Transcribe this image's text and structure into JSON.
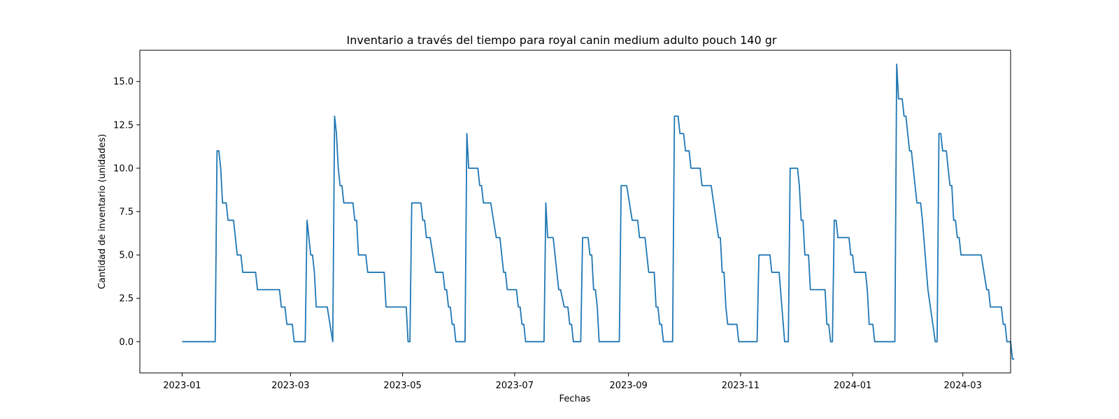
{
  "chart_data": {
    "type": "line",
    "title": "Inventario a través del tiempo para royal canin medium adulto pouch 140 gr",
    "xlabel": "Fechas",
    "ylabel": "Cantidad de inventario (unidades)",
    "x_type": "date",
    "xlim": [
      "2022-12-09",
      "2024-03-27"
    ],
    "ylim": [
      -1.8,
      16.8
    ],
    "x_ticks": [
      "2023-01",
      "2023-03",
      "2023-05",
      "2023-07",
      "2023-09",
      "2023-11",
      "2024-01",
      "2024-03"
    ],
    "y_ticks": [
      0.0,
      2.5,
      5.0,
      7.5,
      10.0,
      12.5,
      15.0
    ],
    "y_tick_labels": [
      "0.0",
      "2.5",
      "5.0",
      "7.5",
      "10.0",
      "12.5",
      "15.0"
    ],
    "grid": false,
    "line_color": "#1f77b4",
    "series": [
      {
        "name": "",
        "points": [
          [
            "2023-01-01",
            0
          ],
          [
            "2023-01-19",
            0
          ],
          [
            "2023-01-20",
            11
          ],
          [
            "2023-01-21",
            11
          ],
          [
            "2023-01-22",
            10
          ],
          [
            "2023-01-23",
            8
          ],
          [
            "2023-01-25",
            8
          ],
          [
            "2023-01-26",
            7
          ],
          [
            "2023-01-29",
            7
          ],
          [
            "2023-01-31",
            5
          ],
          [
            "2023-02-02",
            5
          ],
          [
            "2023-02-03",
            4
          ],
          [
            "2023-02-10",
            4
          ],
          [
            "2023-02-11",
            3
          ],
          [
            "2023-02-23",
            3
          ],
          [
            "2023-02-24",
            2
          ],
          [
            "2023-02-26",
            2
          ],
          [
            "2023-02-27",
            1
          ],
          [
            "2023-03-02",
            1
          ],
          [
            "2023-03-03",
            0
          ],
          [
            "2023-03-09",
            0
          ],
          [
            "2023-03-10",
            7
          ],
          [
            "2023-03-12",
            5
          ],
          [
            "2023-03-13",
            5
          ],
          [
            "2023-03-14",
            4
          ],
          [
            "2023-03-15",
            2
          ],
          [
            "2023-03-21",
            2
          ],
          [
            "2023-03-24",
            0
          ],
          [
            "2023-03-25",
            13
          ],
          [
            "2023-03-26",
            12
          ],
          [
            "2023-03-27",
            10
          ],
          [
            "2023-03-28",
            9
          ],
          [
            "2023-03-29",
            9
          ],
          [
            "2023-03-30",
            8
          ],
          [
            "2023-04-04",
            8
          ],
          [
            "2023-04-05",
            7
          ],
          [
            "2023-04-06",
            7
          ],
          [
            "2023-04-07",
            5
          ],
          [
            "2023-04-11",
            5
          ],
          [
            "2023-04-12",
            4
          ],
          [
            "2023-04-21",
            4
          ],
          [
            "2023-04-22",
            2
          ],
          [
            "2023-05-03",
            2
          ],
          [
            "2023-05-04",
            0
          ],
          [
            "2023-05-05",
            0
          ],
          [
            "2023-05-06",
            8
          ],
          [
            "2023-05-11",
            8
          ],
          [
            "2023-05-12",
            7
          ],
          [
            "2023-05-13",
            7
          ],
          [
            "2023-05-14",
            6
          ],
          [
            "2023-05-16",
            6
          ],
          [
            "2023-05-19",
            4
          ],
          [
            "2023-05-23",
            4
          ],
          [
            "2023-05-24",
            3
          ],
          [
            "2023-05-25",
            3
          ],
          [
            "2023-05-26",
            2
          ],
          [
            "2023-05-27",
            2
          ],
          [
            "2023-05-28",
            1
          ],
          [
            "2023-05-29",
            1
          ],
          [
            "2023-05-30",
            0
          ],
          [
            "2023-06-04",
            0
          ],
          [
            "2023-06-05",
            12
          ],
          [
            "2023-06-06",
            10
          ],
          [
            "2023-06-11",
            10
          ],
          [
            "2023-06-12",
            9
          ],
          [
            "2023-06-13",
            9
          ],
          [
            "2023-06-14",
            8
          ],
          [
            "2023-06-18",
            8
          ],
          [
            "2023-06-21",
            6
          ],
          [
            "2023-06-23",
            6
          ],
          [
            "2023-06-25",
            4
          ],
          [
            "2023-06-26",
            4
          ],
          [
            "2023-06-27",
            3
          ],
          [
            "2023-07-02",
            3
          ],
          [
            "2023-07-03",
            2
          ],
          [
            "2023-07-04",
            2
          ],
          [
            "2023-07-05",
            1
          ],
          [
            "2023-07-06",
            1
          ],
          [
            "2023-07-07",
            0
          ],
          [
            "2023-07-17",
            0
          ],
          [
            "2023-07-18",
            8
          ],
          [
            "2023-07-19",
            6
          ],
          [
            "2023-07-22",
            6
          ],
          [
            "2023-07-25",
            3
          ],
          [
            "2023-07-26",
            3
          ],
          [
            "2023-07-28",
            2
          ],
          [
            "2023-07-30",
            2
          ],
          [
            "2023-07-31",
            1
          ],
          [
            "2023-08-01",
            1
          ],
          [
            "2023-08-02",
            0
          ],
          [
            "2023-08-06",
            0
          ],
          [
            "2023-08-07",
            6
          ],
          [
            "2023-08-10",
            6
          ],
          [
            "2023-08-11",
            5
          ],
          [
            "2023-08-12",
            5
          ],
          [
            "2023-08-13",
            3
          ],
          [
            "2023-08-14",
            3
          ],
          [
            "2023-08-15",
            2
          ],
          [
            "2023-08-16",
            0
          ],
          [
            "2023-08-27",
            0
          ],
          [
            "2023-08-28",
            9
          ],
          [
            "2023-08-31",
            9
          ],
          [
            "2023-09-03",
            7
          ],
          [
            "2023-09-06",
            7
          ],
          [
            "2023-09-07",
            6
          ],
          [
            "2023-09-10",
            6
          ],
          [
            "2023-09-12",
            4
          ],
          [
            "2023-09-15",
            4
          ],
          [
            "2023-09-16",
            2
          ],
          [
            "2023-09-17",
            2
          ],
          [
            "2023-09-18",
            1
          ],
          [
            "2023-09-19",
            1
          ],
          [
            "2023-09-20",
            0
          ],
          [
            "2023-09-25",
            0
          ],
          [
            "2023-09-26",
            13
          ],
          [
            "2023-09-28",
            13
          ],
          [
            "2023-09-29",
            12
          ],
          [
            "2023-10-01",
            12
          ],
          [
            "2023-10-02",
            11
          ],
          [
            "2023-10-04",
            11
          ],
          [
            "2023-10-05",
            10
          ],
          [
            "2023-10-10",
            10
          ],
          [
            "2023-10-11",
            9
          ],
          [
            "2023-10-16",
            9
          ],
          [
            "2023-10-20",
            6
          ],
          [
            "2023-10-21",
            6
          ],
          [
            "2023-10-22",
            4
          ],
          [
            "2023-10-23",
            4
          ],
          [
            "2023-10-24",
            2
          ],
          [
            "2023-10-25",
            1
          ],
          [
            "2023-10-30",
            1
          ],
          [
            "2023-10-31",
            0
          ],
          [
            "2023-11-10",
            0
          ],
          [
            "2023-11-11",
            5
          ],
          [
            "2023-11-17",
            5
          ],
          [
            "2023-11-18",
            4
          ],
          [
            "2023-11-22",
            4
          ],
          [
            "2023-11-25",
            0
          ],
          [
            "2023-11-27",
            0
          ],
          [
            "2023-11-28",
            10
          ],
          [
            "2023-12-02",
            10
          ],
          [
            "2023-12-03",
            9
          ],
          [
            "2023-12-04",
            7
          ],
          [
            "2023-12-05",
            7
          ],
          [
            "2023-12-06",
            5
          ],
          [
            "2023-12-08",
            5
          ],
          [
            "2023-12-09",
            3
          ],
          [
            "2023-12-17",
            3
          ],
          [
            "2023-12-18",
            1
          ],
          [
            "2023-12-19",
            1
          ],
          [
            "2023-12-20",
            0
          ],
          [
            "2023-12-21",
            0
          ],
          [
            "2023-12-22",
            7
          ],
          [
            "2023-12-23",
            7
          ],
          [
            "2023-12-24",
            6
          ],
          [
            "2023-12-30",
            6
          ],
          [
            "2023-12-31",
            5
          ],
          [
            "2024-01-01",
            5
          ],
          [
            "2024-01-02",
            4
          ],
          [
            "2024-01-08",
            4
          ],
          [
            "2024-01-09",
            3
          ],
          [
            "2024-01-10",
            1
          ],
          [
            "2024-01-12",
            1
          ],
          [
            "2024-01-13",
            0
          ],
          [
            "2024-01-24",
            0
          ],
          [
            "2024-01-25",
            16
          ],
          [
            "2024-01-26",
            14
          ],
          [
            "2024-01-28",
            14
          ],
          [
            "2024-01-29",
            13
          ],
          [
            "2024-01-30",
            13
          ],
          [
            "2024-02-01",
            11
          ],
          [
            "2024-02-02",
            11
          ],
          [
            "2024-02-05",
            8
          ],
          [
            "2024-02-07",
            8
          ],
          [
            "2024-02-08",
            7
          ],
          [
            "2024-02-11",
            3
          ],
          [
            "2024-02-15",
            0
          ],
          [
            "2024-02-16",
            0
          ],
          [
            "2024-02-17",
            12
          ],
          [
            "2024-02-18",
            12
          ],
          [
            "2024-02-19",
            11
          ],
          [
            "2024-02-21",
            11
          ],
          [
            "2024-02-23",
            9
          ],
          [
            "2024-02-24",
            9
          ],
          [
            "2024-02-25",
            7
          ],
          [
            "2024-02-26",
            7
          ],
          [
            "2024-02-27",
            6
          ],
          [
            "2024-02-28",
            6
          ],
          [
            "2024-02-29",
            5
          ],
          [
            "2024-03-11",
            5
          ],
          [
            "2024-03-14",
            3
          ],
          [
            "2024-03-15",
            3
          ],
          [
            "2024-03-16",
            2
          ],
          [
            "2024-03-22",
            2
          ],
          [
            "2024-03-23",
            1
          ],
          [
            "2024-03-24",
            1
          ],
          [
            "2024-03-25",
            0
          ],
          [
            "2024-03-27",
            0
          ],
          [
            "2024-03-28",
            -1
          ],
          [
            "2024-03-29",
            -1
          ]
        ]
      }
    ]
  }
}
